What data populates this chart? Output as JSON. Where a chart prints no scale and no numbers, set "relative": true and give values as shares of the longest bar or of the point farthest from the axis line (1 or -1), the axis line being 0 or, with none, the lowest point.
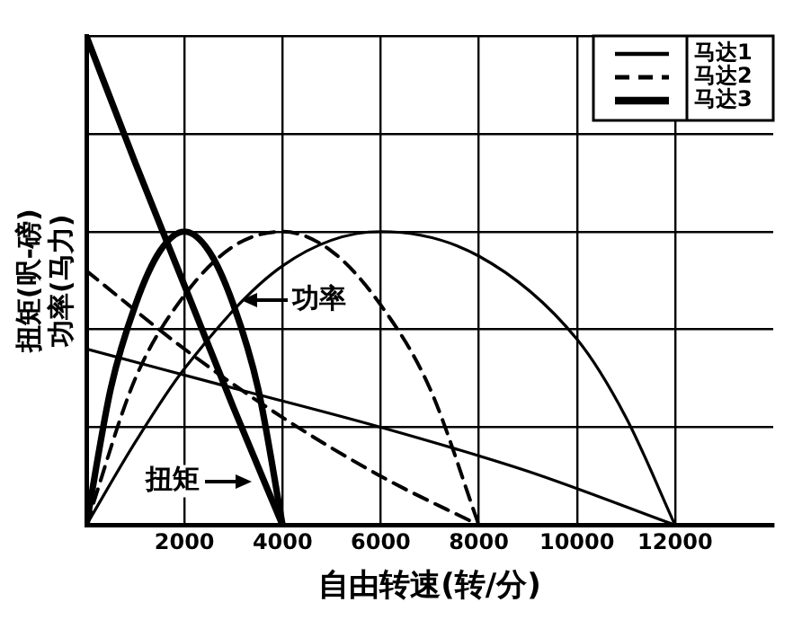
{
  "chart_data": {
    "type": "line",
    "relative": true,
    "xlabel": "自由转速(转/分)",
    "ylabel": "扭矩(呎-磅)\n功率(马力)",
    "xlim": [
      0,
      14000
    ],
    "xticks": [
      2000,
      4000,
      6000,
      8000,
      10000,
      12000
    ],
    "grid": true,
    "legend": "top right",
    "marker": "none",
    "series": [
      {
        "name": "马达1",
        "color": "#000000",
        "line_style": "solid",
        "x": [
          0,
          3000,
          6000,
          9000,
          12000
        ],
        "values": [
          0.36,
          0.28,
          0.2,
          0.11,
          0
        ]
      },
      {
        "name": "马达2",
        "color": "#000000",
        "line_style": "dashed",
        "x": [
          0,
          2000,
          4000,
          6000,
          8000
        ],
        "values": [
          0.52,
          0.36,
          0.22,
          0.1,
          0
        ]
      },
      {
        "name": "马达3",
        "color": "#000000",
        "line_style": "solid",
        "x": [
          0,
          1000,
          2000,
          3000,
          4000
        ],
        "values": [
          1,
          0.74,
          0.49,
          0.24,
          0
        ]
      },
      {
        "color": "#000000",
        "line_style": "solid",
        "x": [
          0,
          1000,
          2000,
          4000,
          6000,
          8000,
          10000,
          11000,
          12000
        ],
        "values": [
          0,
          0.17,
          0.32,
          0.53,
          0.6,
          0.55,
          0.38,
          0.22,
          0
        ]
      },
      {
        "color": "#000000",
        "line_style": "dashed",
        "x": [
          0,
          1000,
          2000,
          3000,
          4000,
          5000,
          6000,
          7000,
          8000
        ],
        "values": [
          0,
          0.3,
          0.47,
          0.57,
          0.6,
          0.56,
          0.45,
          0.28,
          0
        ]
      },
      {
        "color": "#000000",
        "line_style": "solid",
        "x": [
          0,
          500,
          1000,
          1500,
          2000,
          2500,
          3000,
          3500,
          4000
        ],
        "values": [
          0,
          0.28,
          0.45,
          0.56,
          0.6,
          0.56,
          0.45,
          0.28,
          0
        ]
      }
    ],
    "annotations": [
      {
        "text": "功率",
        "x": 3100,
        "y": 0.46
      },
      {
        "text": "扭矩",
        "x": 3400,
        "y": 0.09
      }
    ]
  }
}
